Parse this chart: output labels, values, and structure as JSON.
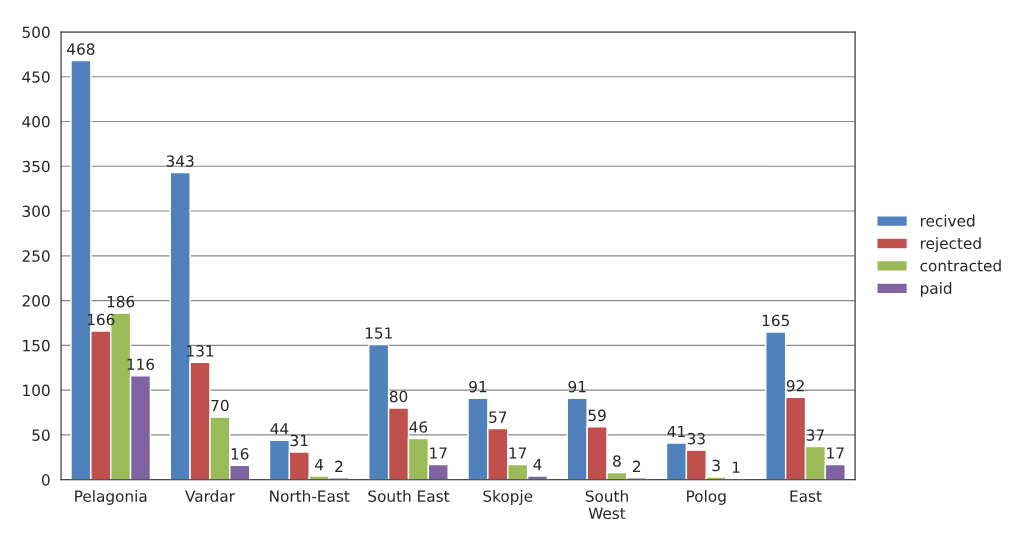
{
  "chart_data": {
    "type": "bar",
    "categories": [
      "Pelagonia",
      "Vardar",
      "North-East",
      "South East",
      "Skopje",
      "South\nWest",
      "Polog",
      "East"
    ],
    "series": [
      {
        "name": "recived",
        "color": "#4f81bd",
        "values": [
          468,
          343,
          44,
          151,
          91,
          91,
          41,
          165
        ]
      },
      {
        "name": "rejected",
        "color": "#c0504d",
        "values": [
          166,
          131,
          31,
          80,
          57,
          59,
          33,
          92
        ]
      },
      {
        "name": "contracted",
        "color": "#9bbb59",
        "values": [
          186,
          70,
          4,
          46,
          17,
          8,
          3,
          37
        ]
      },
      {
        "name": "paid",
        "color": "#8064a2",
        "values": [
          116,
          16,
          2,
          17,
          4,
          2,
          1,
          17
        ]
      }
    ],
    "ylim": [
      0,
      500
    ],
    "yticks": [
      0,
      50,
      100,
      150,
      200,
      250,
      300,
      350,
      400,
      450,
      500
    ],
    "grid": "y",
    "legend": "right",
    "data_labels": true
  }
}
